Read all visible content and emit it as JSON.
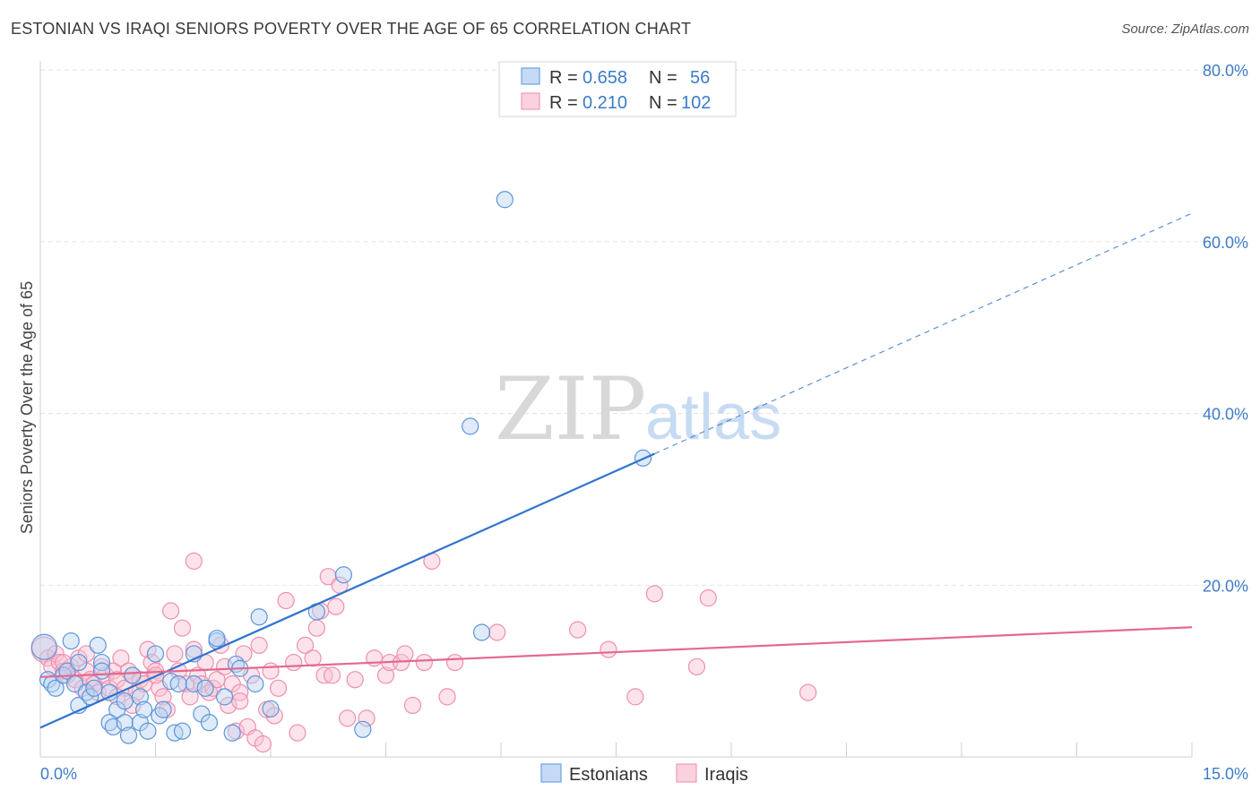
{
  "title": "ESTONIAN VS IRAQI SENIORS POVERTY OVER THE AGE OF 65 CORRELATION CHART",
  "source": "Source: ZipAtlas.com",
  "watermark": {
    "zip": "ZIP",
    "atlas": "atlas"
  },
  "legend_top": [
    {
      "r_label": "R =",
      "r_value": "0.658",
      "n_label": "N =",
      "n_value": "56",
      "color": "#6fa3e0"
    },
    {
      "r_label": "R =",
      "r_value": "0.210",
      "n_label": "N =",
      "n_value": "102",
      "color": "#f19bb6"
    }
  ],
  "chart_data": {
    "type": "scatter",
    "xlabel": "",
    "ylabel": "Seniors Poverty Over the Age of 65",
    "xlim": [
      0,
      15
    ],
    "ylim": [
      0,
      80
    ],
    "x_tick_labels": [
      "0.0%",
      "15.0%"
    ],
    "y_ticks": [
      20,
      40,
      60,
      80
    ],
    "y_tick_labels": [
      "20.0%",
      "40.0%",
      "60.0%",
      "80.0%"
    ],
    "grid": true,
    "legend_position": "bottom",
    "series": [
      {
        "name": "Estonians",
        "color": "#6fa3e0",
        "line_color": "#2f74cf",
        "trend": {
          "x0": 0,
          "y0": 3.4,
          "x1": 8.0,
          "y1": 35.3,
          "dash_to_x": 15,
          "dash_to_y": 63.3
        },
        "points": [
          [
            0.05,
            12.8
          ],
          [
            0.1,
            9.0
          ],
          [
            0.15,
            8.5
          ],
          [
            0.2,
            8.0
          ],
          [
            0.3,
            9.5
          ],
          [
            0.35,
            10.0
          ],
          [
            0.4,
            13.5
          ],
          [
            0.45,
            8.5
          ],
          [
            0.5,
            11.0
          ],
          [
            0.5,
            6.0
          ],
          [
            0.6,
            7.5
          ],
          [
            0.65,
            7.0
          ],
          [
            0.7,
            8.0
          ],
          [
            0.75,
            13.0
          ],
          [
            0.8,
            11.0
          ],
          [
            0.8,
            10.0
          ],
          [
            0.9,
            7.5
          ],
          [
            0.9,
            4.0
          ],
          [
            0.95,
            3.5
          ],
          [
            1.0,
            5.5
          ],
          [
            1.1,
            4.0
          ],
          [
            1.1,
            6.5
          ],
          [
            1.15,
            2.5
          ],
          [
            1.2,
            9.5
          ],
          [
            1.3,
            7.0
          ],
          [
            1.3,
            4.0
          ],
          [
            1.35,
            5.5
          ],
          [
            1.4,
            3.0
          ],
          [
            1.5,
            12.0
          ],
          [
            1.55,
            4.8
          ],
          [
            1.6,
            5.5
          ],
          [
            1.7,
            8.8
          ],
          [
            1.75,
            2.8
          ],
          [
            1.8,
            8.5
          ],
          [
            1.85,
            3.0
          ],
          [
            2.0,
            12.0
          ],
          [
            2.0,
            8.5
          ],
          [
            2.1,
            5.0
          ],
          [
            2.15,
            8.0
          ],
          [
            2.2,
            4.0
          ],
          [
            2.3,
            13.5
          ],
          [
            2.3,
            13.8
          ],
          [
            2.4,
            7.0
          ],
          [
            2.5,
            2.8
          ],
          [
            2.55,
            10.8
          ],
          [
            2.6,
            10.3
          ],
          [
            2.8,
            8.5
          ],
          [
            2.85,
            16.3
          ],
          [
            3.0,
            5.6
          ],
          [
            3.6,
            16.9
          ],
          [
            3.95,
            21.2
          ],
          [
            4.2,
            3.2
          ],
          [
            5.6,
            38.5
          ],
          [
            5.75,
            14.5
          ],
          [
            6.05,
            64.9
          ],
          [
            7.85,
            34.8
          ]
        ]
      },
      {
        "name": "Iraqis",
        "color": "#f19bb6",
        "line_color": "#e4688f",
        "trend": {
          "x0": 0,
          "y0": 9.3,
          "x1": 15,
          "y1": 15.1
        },
        "points": [
          [
            0.05,
            12.5
          ],
          [
            0.1,
            11.5
          ],
          [
            0.15,
            10.5
          ],
          [
            0.2,
            12.0
          ],
          [
            0.25,
            11.0
          ],
          [
            0.3,
            10.0
          ],
          [
            0.35,
            9.5
          ],
          [
            0.4,
            10.5
          ],
          [
            0.45,
            9.0
          ],
          [
            0.5,
            11.5
          ],
          [
            0.55,
            8.0
          ],
          [
            0.6,
            10.0
          ],
          [
            0.65,
            9.0
          ],
          [
            0.7,
            8.5
          ],
          [
            0.75,
            7.5
          ],
          [
            0.8,
            10.5
          ],
          [
            0.85,
            9.5
          ],
          [
            0.9,
            8.0
          ],
          [
            0.95,
            10.0
          ],
          [
            1.0,
            9.0
          ],
          [
            1.05,
            11.5
          ],
          [
            1.1,
            8.0
          ],
          [
            1.15,
            10.0
          ],
          [
            1.2,
            9.5
          ],
          [
            1.25,
            7.5
          ],
          [
            1.3,
            9.0
          ],
          [
            1.35,
            8.5
          ],
          [
            1.4,
            12.5
          ],
          [
            1.45,
            11.0
          ],
          [
            1.5,
            10.0
          ],
          [
            1.55,
            8.0
          ],
          [
            1.6,
            7.0
          ],
          [
            1.65,
            5.5
          ],
          [
            1.7,
            17.0
          ],
          [
            1.75,
            12.0
          ],
          [
            1.8,
            10.0
          ],
          [
            1.85,
            15.0
          ],
          [
            1.9,
            8.5
          ],
          [
            1.95,
            7.0
          ],
          [
            2.0,
            22.8
          ],
          [
            2.05,
            9.5
          ],
          [
            2.1,
            8.5
          ],
          [
            2.15,
            11.0
          ],
          [
            2.2,
            7.5
          ],
          [
            2.25,
            8.0
          ],
          [
            2.3,
            9.0
          ],
          [
            2.35,
            13.0
          ],
          [
            2.4,
            10.5
          ],
          [
            2.45,
            6.0
          ],
          [
            2.5,
            8.5
          ],
          [
            2.55,
            3.0
          ],
          [
            2.6,
            7.5
          ],
          [
            2.65,
            12.0
          ],
          [
            2.7,
            3.5
          ],
          [
            2.75,
            9.5
          ],
          [
            2.8,
            2.2
          ],
          [
            2.85,
            13.0
          ],
          [
            2.9,
            1.5
          ],
          [
            2.95,
            5.5
          ],
          [
            3.0,
            10.0
          ],
          [
            3.05,
            4.8
          ],
          [
            3.1,
            8.0
          ],
          [
            3.2,
            18.2
          ],
          [
            3.3,
            11.0
          ],
          [
            3.35,
            2.8
          ],
          [
            3.45,
            13.0
          ],
          [
            3.55,
            11.5
          ],
          [
            3.6,
            15.0
          ],
          [
            3.65,
            17.0
          ],
          [
            3.7,
            9.5
          ],
          [
            3.75,
            21.0
          ],
          [
            3.8,
            9.5
          ],
          [
            3.85,
            17.5
          ],
          [
            4.0,
            4.5
          ],
          [
            4.1,
            9.0
          ],
          [
            4.25,
            4.5
          ],
          [
            4.35,
            11.5
          ],
          [
            4.5,
            9.5
          ],
          [
            4.55,
            11.0
          ],
          [
            4.7,
            11.0
          ],
          [
            4.75,
            12.0
          ],
          [
            4.85,
            6.0
          ],
          [
            5.0,
            11.0
          ],
          [
            5.1,
            22.8
          ],
          [
            5.3,
            7.0
          ],
          [
            5.4,
            11.0
          ],
          [
            5.95,
            14.5
          ],
          [
            7.0,
            14.8
          ],
          [
            7.4,
            12.5
          ],
          [
            7.75,
            7.0
          ],
          [
            8.0,
            19.0
          ],
          [
            8.55,
            10.5
          ],
          [
            8.7,
            18.5
          ],
          [
            10.0,
            7.5
          ],
          [
            2.6,
            6.5
          ],
          [
            1.0,
            7.0
          ],
          [
            0.6,
            12.0
          ],
          [
            1.2,
            6.0
          ],
          [
            3.9,
            20.0
          ],
          [
            2.0,
            12.5
          ],
          [
            1.5,
            9.5
          ],
          [
            0.3,
            11.0
          ]
        ]
      }
    ]
  }
}
